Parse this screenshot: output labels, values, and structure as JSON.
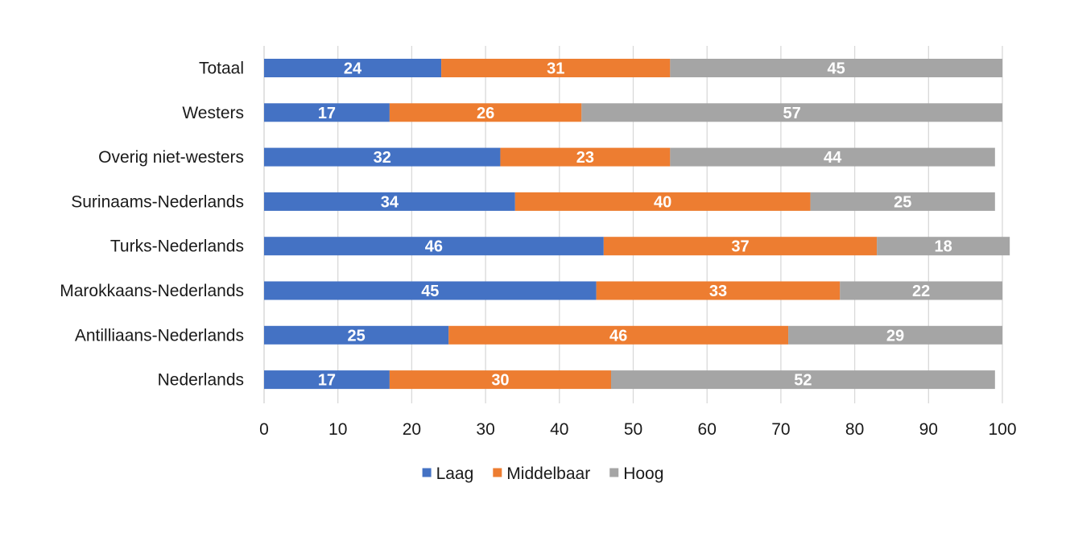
{
  "chart_data": {
    "type": "bar",
    "orientation": "horizontal",
    "stacked": true,
    "categories": [
      "Totaal",
      "Westers",
      "Overig niet-westers",
      "Surinaams-Nederlands",
      "Turks-Nederlands",
      "Marokkaans-Nederlands",
      "Antilliaans-Nederlands",
      "Nederlands"
    ],
    "series": [
      {
        "name": "Laag",
        "color": "#4472c4",
        "values": [
          24,
          17,
          32,
          34,
          46,
          45,
          25,
          17
        ]
      },
      {
        "name": "Middelbaar",
        "color": "#ed7d31",
        "values": [
          31,
          26,
          23,
          40,
          37,
          33,
          46,
          30
        ]
      },
      {
        "name": "Hoog",
        "color": "#a5a5a5",
        "values": [
          45,
          57,
          44,
          25,
          18,
          22,
          29,
          52
        ]
      }
    ],
    "xlim": [
      0,
      100
    ],
    "xticks": [
      0,
      10,
      20,
      30,
      40,
      50,
      60,
      70,
      80,
      90,
      100
    ],
    "grid": true,
    "gridline_color": "#d9d9d9",
    "legend_position": "bottom",
    "title": "",
    "xlabel": "",
    "ylabel": ""
  }
}
